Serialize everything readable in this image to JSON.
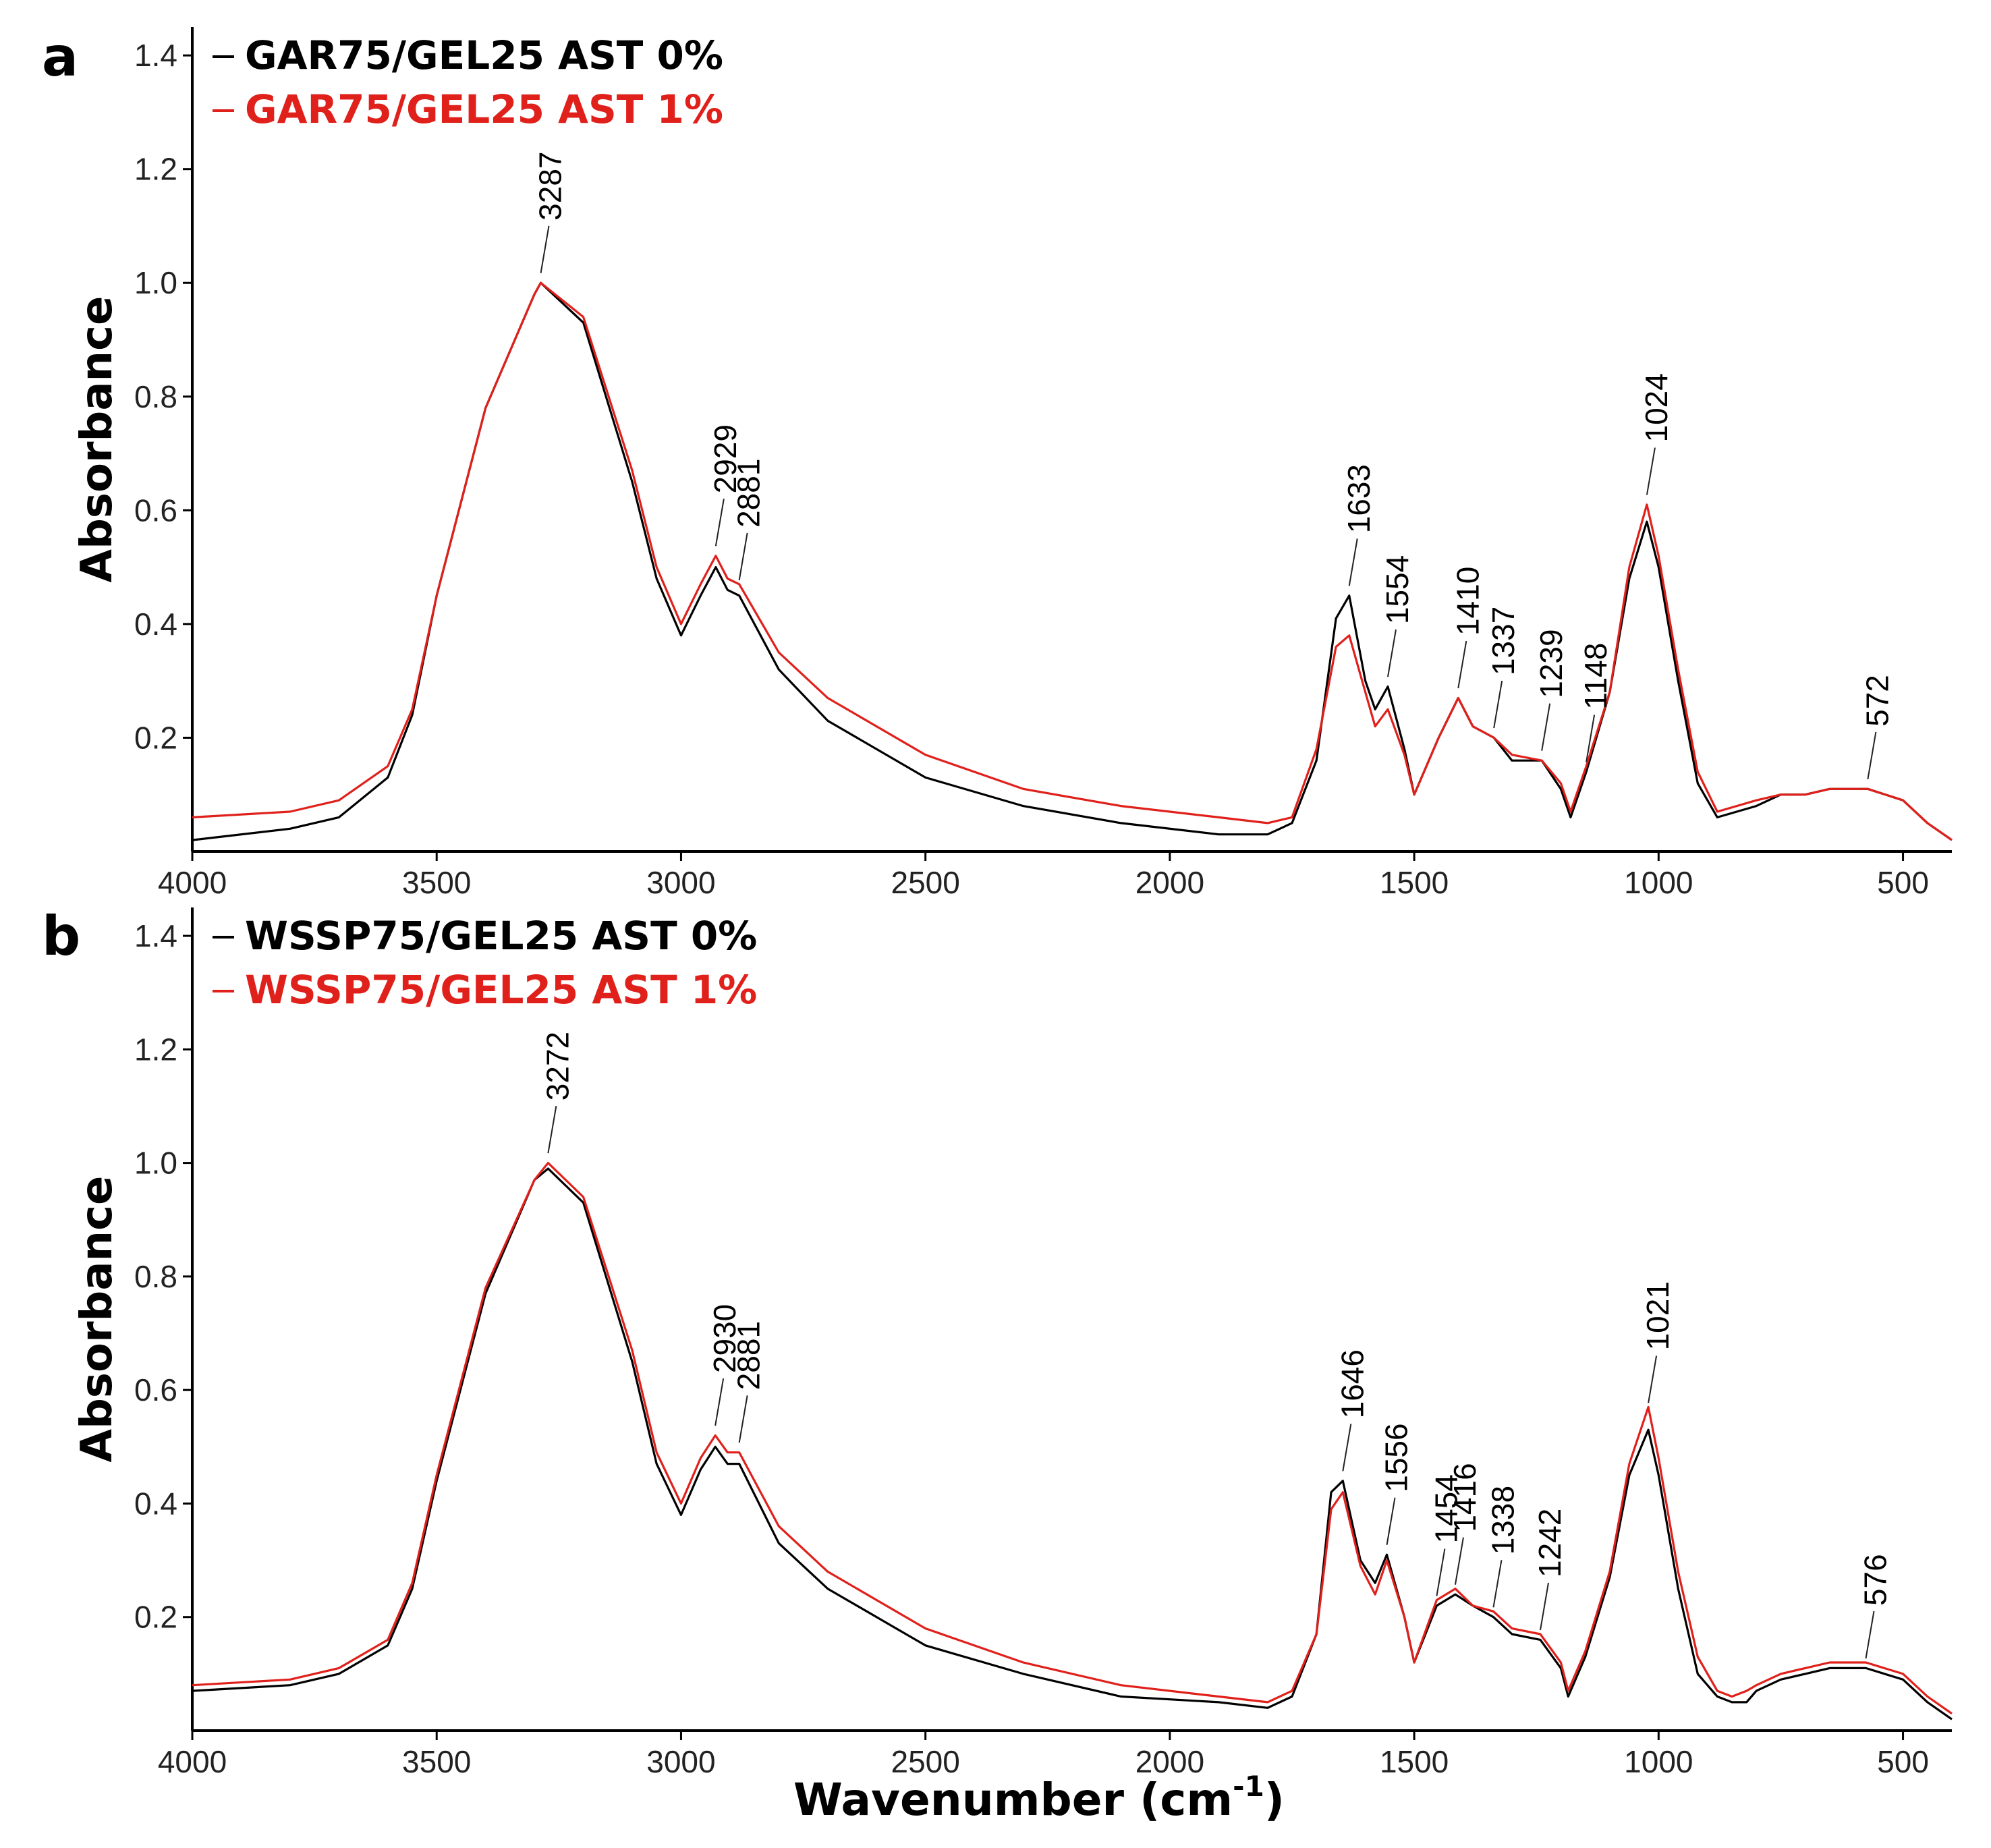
{
  "colors": {
    "sample_0": "#000000",
    "sample_1": "#e0201b"
  },
  "figure": {
    "xlabel_main": "Wavenumber (cm",
    "xlabel_sup": "-1",
    "xlabel_end": ")"
  },
  "chart_data": [
    {
      "panel": "a",
      "type": "line",
      "title": "",
      "xlabel": "Wavenumber (cm-1)",
      "ylabel": "Absorbance",
      "xlim": [
        4000,
        400
      ],
      "ylim": [
        0,
        1.45
      ],
      "xticks": [
        4000,
        3500,
        3000,
        2500,
        2000,
        1500,
        1000,
        500
      ],
      "yticks": [
        0.2,
        0.4,
        0.6,
        0.8,
        1.0,
        1.2,
        1.4
      ],
      "legend": [
        "GAR75/GEL25 AST 0%",
        "GAR75/GEL25 AST 1%"
      ],
      "series": [
        {
          "name": "GAR75/GEL25 AST 0%",
          "color": "#000000",
          "x": [
            4000,
            3800,
            3700,
            3600,
            3550,
            3500,
            3400,
            3300,
            3287,
            3200,
            3100,
            3050,
            3000,
            2960,
            2929,
            2905,
            2881,
            2800,
            2700,
            2500,
            2300,
            2100,
            1900,
            1800,
            1750,
            1700,
            1660,
            1633,
            1600,
            1580,
            1554,
            1520,
            1500,
            1450,
            1410,
            1380,
            1337,
            1300,
            1239,
            1200,
            1180,
            1148,
            1100,
            1060,
            1024,
            1000,
            960,
            920,
            880,
            800,
            750,
            700,
            650,
            572,
            500,
            450,
            400
          ],
          "values": [
            0.02,
            0.04,
            0.06,
            0.13,
            0.24,
            0.45,
            0.78,
            0.98,
            1.0,
            0.93,
            0.65,
            0.48,
            0.38,
            0.45,
            0.5,
            0.46,
            0.45,
            0.32,
            0.23,
            0.13,
            0.08,
            0.05,
            0.03,
            0.03,
            0.05,
            0.16,
            0.41,
            0.45,
            0.3,
            0.25,
            0.29,
            0.18,
            0.1,
            0.2,
            0.27,
            0.22,
            0.2,
            0.16,
            0.16,
            0.11,
            0.06,
            0.14,
            0.28,
            0.48,
            0.58,
            0.5,
            0.3,
            0.12,
            0.06,
            0.08,
            0.1,
            0.1,
            0.11,
            0.11,
            0.09,
            0.05,
            0.02
          ]
        },
        {
          "name": "GAR75/GEL25 AST 1%",
          "color": "#e0201b",
          "x": [
            4000,
            3800,
            3700,
            3600,
            3550,
            3500,
            3400,
            3300,
            3287,
            3200,
            3100,
            3050,
            3000,
            2960,
            2929,
            2905,
            2881,
            2800,
            2700,
            2500,
            2300,
            2100,
            1900,
            1800,
            1750,
            1700,
            1660,
            1633,
            1600,
            1580,
            1554,
            1520,
            1500,
            1450,
            1410,
            1380,
            1337,
            1300,
            1239,
            1200,
            1180,
            1148,
            1100,
            1060,
            1024,
            1000,
            960,
            920,
            880,
            800,
            750,
            700,
            650,
            572,
            500,
            450,
            400
          ],
          "values": [
            0.06,
            0.07,
            0.09,
            0.15,
            0.25,
            0.45,
            0.78,
            0.98,
            1.0,
            0.94,
            0.67,
            0.5,
            0.4,
            0.47,
            0.52,
            0.48,
            0.47,
            0.35,
            0.27,
            0.17,
            0.11,
            0.08,
            0.06,
            0.05,
            0.06,
            0.18,
            0.36,
            0.38,
            0.28,
            0.22,
            0.25,
            0.17,
            0.1,
            0.2,
            0.27,
            0.22,
            0.2,
            0.17,
            0.16,
            0.12,
            0.07,
            0.15,
            0.28,
            0.5,
            0.61,
            0.52,
            0.32,
            0.14,
            0.07,
            0.09,
            0.1,
            0.1,
            0.11,
            0.11,
            0.09,
            0.05,
            0.02
          ]
        }
      ],
      "annotations": [
        {
          "text": "3287",
          "x": 3287,
          "y": 1.01
        },
        {
          "text": "2929",
          "x": 2929,
          "y": 0.53
        },
        {
          "text": "2881",
          "x": 2881,
          "y": 0.47
        },
        {
          "text": "1633",
          "x": 1633,
          "y": 0.46
        },
        {
          "text": "1554",
          "x": 1554,
          "y": 0.3
        },
        {
          "text": "1410",
          "x": 1410,
          "y": 0.28
        },
        {
          "text": "1337",
          "x": 1337,
          "y": 0.21
        },
        {
          "text": "1239",
          "x": 1239,
          "y": 0.17
        },
        {
          "text": "1148",
          "x": 1148,
          "y": 0.15
        },
        {
          "text": "1024",
          "x": 1024,
          "y": 0.62
        },
        {
          "text": "572",
          "x": 572,
          "y": 0.12
        }
      ]
    },
    {
      "panel": "b",
      "type": "line",
      "title": "",
      "xlabel": "Wavenumber (cm-1)",
      "ylabel": "Absorbance",
      "xlim": [
        4000,
        400
      ],
      "ylim": [
        0,
        1.45
      ],
      "xticks": [
        4000,
        3500,
        3000,
        2500,
        2000,
        1500,
        1000,
        500
      ],
      "yticks": [
        0.2,
        0.4,
        0.6,
        0.8,
        1.0,
        1.2,
        1.4
      ],
      "legend": [
        "WSSP75/GEL25 AST 0%",
        "WSSP75/GEL25 AST 1%"
      ],
      "series": [
        {
          "name": "WSSP75/GEL25 AST 0%",
          "color": "#000000",
          "x": [
            4000,
            3800,
            3700,
            3600,
            3550,
            3500,
            3400,
            3300,
            3272,
            3200,
            3100,
            3050,
            3000,
            2960,
            2930,
            2905,
            2881,
            2800,
            2700,
            2500,
            2300,
            2100,
            1900,
            1800,
            1750,
            1700,
            1670,
            1646,
            1610,
            1580,
            1556,
            1520,
            1500,
            1454,
            1416,
            1380,
            1338,
            1300,
            1242,
            1200,
            1185,
            1150,
            1100,
            1060,
            1021,
            1000,
            960,
            920,
            880,
            850,
            820,
            800,
            750,
            700,
            650,
            576,
            500,
            450,
            400
          ],
          "values": [
            0.07,
            0.08,
            0.1,
            0.15,
            0.25,
            0.44,
            0.77,
            0.97,
            0.99,
            0.93,
            0.65,
            0.47,
            0.38,
            0.46,
            0.5,
            0.47,
            0.47,
            0.33,
            0.25,
            0.15,
            0.1,
            0.06,
            0.05,
            0.04,
            0.06,
            0.17,
            0.42,
            0.44,
            0.3,
            0.26,
            0.31,
            0.2,
            0.12,
            0.22,
            0.24,
            0.22,
            0.2,
            0.17,
            0.16,
            0.11,
            0.06,
            0.13,
            0.27,
            0.45,
            0.53,
            0.45,
            0.25,
            0.1,
            0.06,
            0.05,
            0.05,
            0.07,
            0.09,
            0.1,
            0.11,
            0.11,
            0.09,
            0.05,
            0.02
          ]
        },
        {
          "name": "WSSP75/GEL25 AST 1%",
          "color": "#e0201b",
          "x": [
            4000,
            3800,
            3700,
            3600,
            3550,
            3500,
            3400,
            3300,
            3272,
            3200,
            3100,
            3050,
            3000,
            2960,
            2930,
            2905,
            2881,
            2800,
            2700,
            2500,
            2300,
            2100,
            1900,
            1800,
            1750,
            1700,
            1670,
            1646,
            1610,
            1580,
            1556,
            1520,
            1500,
            1454,
            1416,
            1380,
            1338,
            1300,
            1242,
            1200,
            1185,
            1150,
            1100,
            1060,
            1021,
            1000,
            960,
            920,
            880,
            850,
            820,
            800,
            750,
            700,
            650,
            576,
            500,
            450,
            400
          ],
          "values": [
            0.08,
            0.09,
            0.11,
            0.16,
            0.26,
            0.45,
            0.78,
            0.97,
            1.0,
            0.94,
            0.67,
            0.49,
            0.4,
            0.48,
            0.52,
            0.49,
            0.49,
            0.36,
            0.28,
            0.18,
            0.12,
            0.08,
            0.06,
            0.05,
            0.07,
            0.17,
            0.39,
            0.42,
            0.29,
            0.24,
            0.3,
            0.2,
            0.12,
            0.23,
            0.25,
            0.22,
            0.21,
            0.18,
            0.17,
            0.12,
            0.07,
            0.14,
            0.28,
            0.47,
            0.57,
            0.48,
            0.28,
            0.13,
            0.07,
            0.06,
            0.07,
            0.08,
            0.1,
            0.11,
            0.12,
            0.12,
            0.1,
            0.06,
            0.03
          ]
        }
      ],
      "annotations": [
        {
          "text": "3272",
          "x": 3272,
          "y": 1.01
        },
        {
          "text": "2930",
          "x": 2930,
          "y": 0.53
        },
        {
          "text": "2881",
          "x": 2881,
          "y": 0.5
        },
        {
          "text": "1646",
          "x": 1646,
          "y": 0.45
        },
        {
          "text": "1556",
          "x": 1556,
          "y": 0.32
        },
        {
          "text": "1454",
          "x": 1454,
          "y": 0.23
        },
        {
          "text": "1416",
          "x": 1416,
          "y": 0.25
        },
        {
          "text": "1338",
          "x": 1338,
          "y": 0.21
        },
        {
          "text": "1242",
          "x": 1242,
          "y": 0.17
        },
        {
          "text": "1021",
          "x": 1021,
          "y": 0.57
        },
        {
          "text": "576",
          "x": 576,
          "y": 0.12
        }
      ]
    }
  ]
}
